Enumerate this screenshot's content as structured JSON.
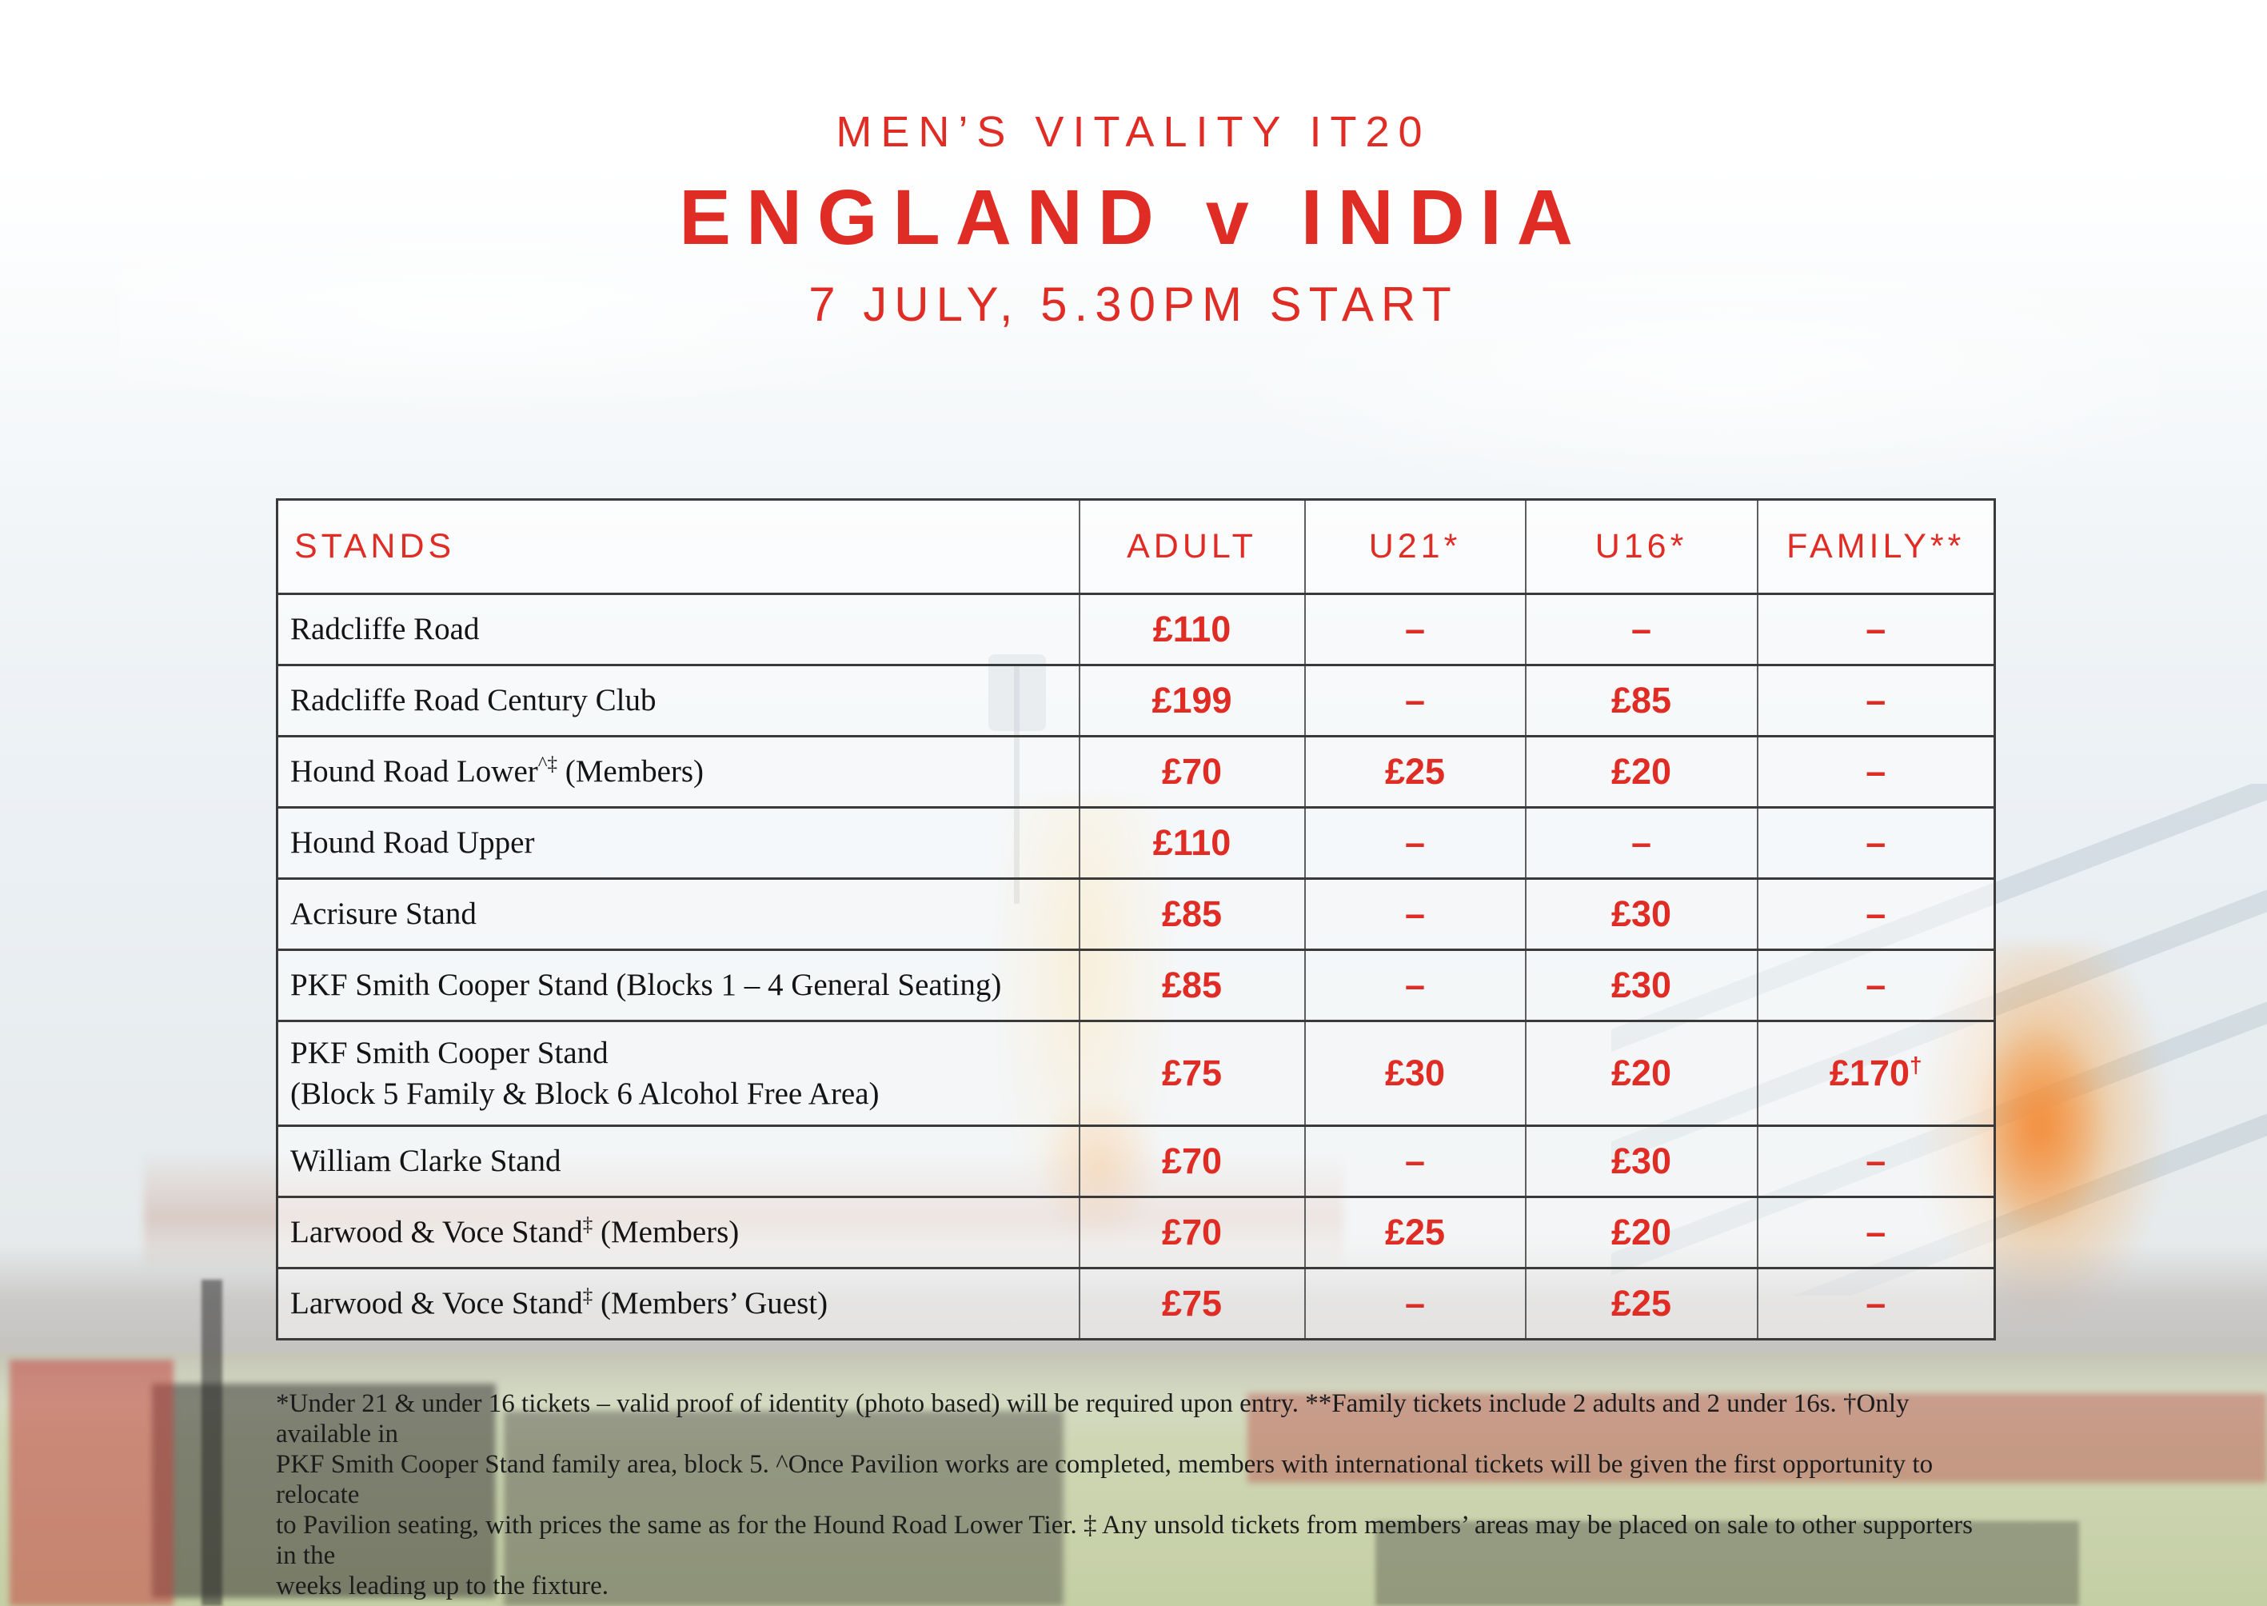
{
  "colors": {
    "accent_red": "#df2d26",
    "table_line": "#3a3a3a"
  },
  "header": {
    "series": "MEN’S VITALITY IT20",
    "match": "ENGLAND v INDIA",
    "datetime": "7 JULY, 5.30PM START"
  },
  "table": {
    "headers": [
      "STANDS",
      "ADULT",
      "U21*",
      "U16*",
      "FAMILY**"
    ],
    "rows": [
      {
        "line1": "Radcliffe Road",
        "adult": "£110",
        "u21": "–",
        "u16": "–",
        "family": "–"
      },
      {
        "line1": "Radcliffe Road Century Club",
        "adult": "£199",
        "u21": "–",
        "u16": "£85",
        "family": "–"
      },
      {
        "line1": "Hound Road Lower",
        "sup": "^‡",
        "rest": " (Members)",
        "adult": "£70",
        "u21": "£25",
        "u16": "£20",
        "family": "–"
      },
      {
        "line1": "Hound Road Upper",
        "adult": "£110",
        "u21": "–",
        "u16": "–",
        "family": "–"
      },
      {
        "line1": "Acrisure Stand",
        "adult": "£85",
        "u21": "–",
        "u16": "£30",
        "family": "–"
      },
      {
        "line1": "PKF Smith Cooper Stand (Blocks 1 – 4 General Seating)",
        "adult": "£85",
        "u21": "–",
        "u16": "£30",
        "family": "–"
      },
      {
        "line1": "PKF Smith Cooper Stand",
        "line2": "(Block 5 Family & Block 6 Alcohol Free Area)",
        "tall": true,
        "adult": "£75",
        "u21": "£30",
        "u16": "£20",
        "family": "£170",
        "family_sup": "†"
      },
      {
        "line1": "William Clarke Stand",
        "adult": "£70",
        "u21": "–",
        "u16": "£30",
        "family": "–"
      },
      {
        "line1": "Larwood & Voce Stand",
        "sup": "‡",
        "rest": " (Members)",
        "adult": "£70",
        "u21": "£25",
        "u16": "£20",
        "family": "–"
      },
      {
        "line1": "Larwood & Voce Stand",
        "sup": "‡",
        "rest": " (Members’ Guest)",
        "adult": "£75",
        "u21": "–",
        "u16": "£25",
        "family": "–"
      }
    ]
  },
  "footnotes": {
    "lines": [
      "*Under 21 & under 16 tickets – valid proof of identity (photo based) will be required upon entry. **Family tickets include 2 adults and 2 under 16s. †Only available in",
      "PKF Smith Cooper Stand family area, block 5. ^Once Pavilion works are completed, members with international tickets will be given the first opportunity to relocate",
      "to Pavilion seating, with prices the same as for the Hound Road Lower Tier. ‡ Any unsold tickets from members’ areas may be placed on sale to other supporters in the",
      "weeks leading up to the fixture."
    ]
  }
}
